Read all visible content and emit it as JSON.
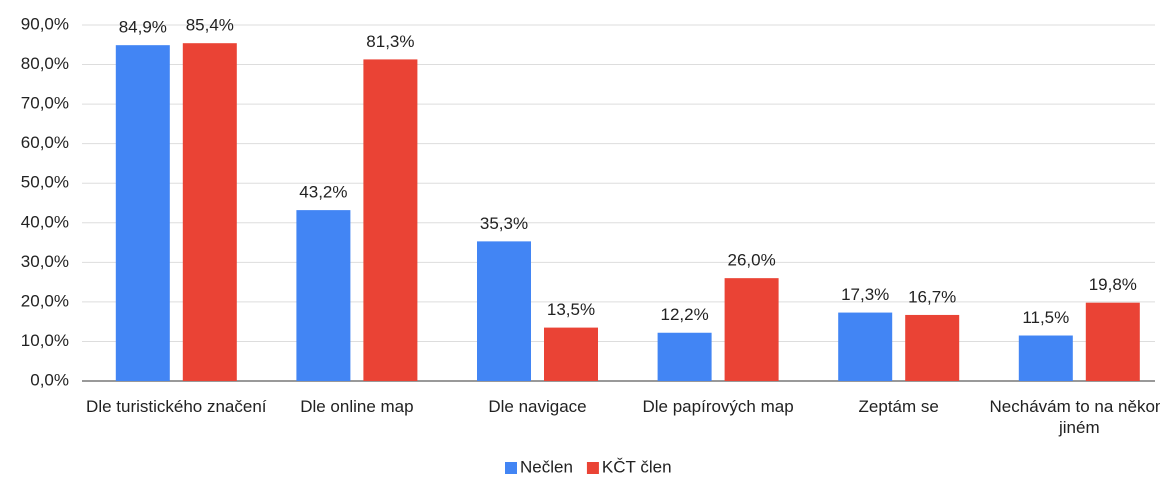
{
  "chart_data": {
    "type": "bar",
    "categories": [
      "Dle turistického značení",
      "Dle online map",
      "Dle navigace",
      "Dle papírových map",
      "Zeptám se",
      "Nechávám to na někom jiném"
    ],
    "series": [
      {
        "name": "Nečlen",
        "color": "#4285f4",
        "values": [
          84.9,
          43.2,
          35.3,
          12.2,
          17.3,
          11.5
        ],
        "value_labels": [
          "84,9%",
          "43,2%",
          "35,3%",
          "12,2%",
          "17,3%",
          "11,5%"
        ]
      },
      {
        "name": "KČT člen",
        "color": "#ea4335",
        "values": [
          85.4,
          81.3,
          13.5,
          26.0,
          16.7,
          19.8
        ],
        "value_labels": [
          "85,4%",
          "81,3%",
          "13,5%",
          "26,0%",
          "16,7%",
          "19,8%"
        ]
      }
    ],
    "ylim": [
      0,
      90
    ],
    "yticks": [
      {
        "value": 0,
        "label": "0,0%"
      },
      {
        "value": 10,
        "label": "10,0%"
      },
      {
        "value": 20,
        "label": "20,0%"
      },
      {
        "value": 30,
        "label": "30,0%"
      },
      {
        "value": 40,
        "label": "40,0%"
      },
      {
        "value": 50,
        "label": "50,0%"
      },
      {
        "value": 60,
        "label": "60,0%"
      },
      {
        "value": 70,
        "label": "70,0%"
      },
      {
        "value": 80,
        "label": "80,0%"
      },
      {
        "value": 90,
        "label": "90,0%"
      }
    ],
    "grid": true,
    "legend": "bottom"
  }
}
